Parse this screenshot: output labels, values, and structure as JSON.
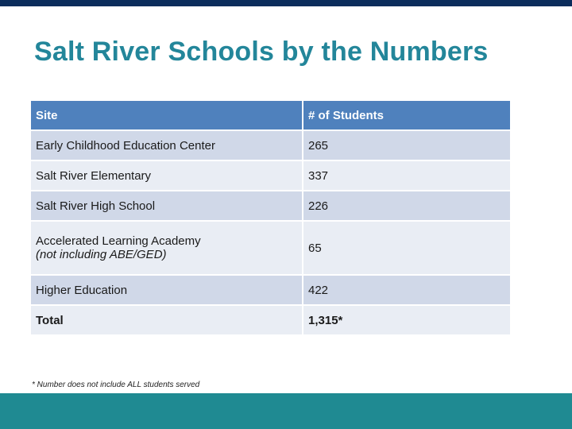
{
  "title": "Salt River Schools by the Numbers",
  "table": {
    "headers": [
      "Site",
      "# of Students"
    ],
    "rows": [
      {
        "site": "Early Childhood Education Center",
        "students": "265"
      },
      {
        "site": "Salt River Elementary",
        "students": "337"
      },
      {
        "site": "Salt River High School",
        "students": "226"
      },
      {
        "site": "Accelerated Learning Academy",
        "note": "(not including ABE/GED)",
        "students": "65"
      },
      {
        "site": "Higher Education",
        "students": "422"
      },
      {
        "site": "Total",
        "students": "1,315*"
      }
    ]
  },
  "footnote": "* Number does not include ALL students served",
  "colors": {
    "title": "#23869a",
    "header_bg": "#4f81bd",
    "row_dark": "#d0d8e8",
    "row_light": "#e9edf4",
    "top_bar": "#0b2d5c",
    "bottom_bar": "#1f8a92"
  }
}
